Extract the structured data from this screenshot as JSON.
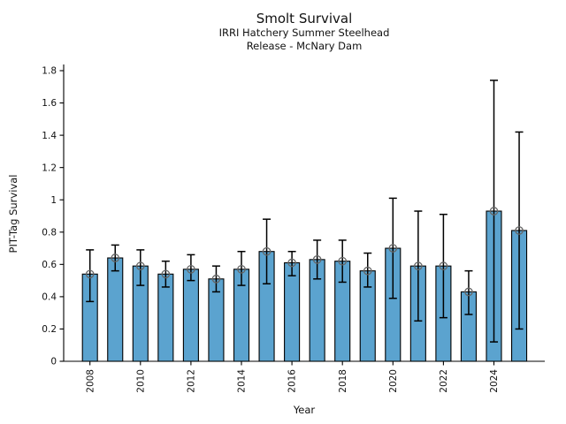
{
  "chart_data": {
    "type": "bar",
    "title": "Smolt Survival",
    "subtitle1": "IRRI Hatchery Summer Steelhead",
    "subtitle2": "Release - McNary Dam",
    "xlabel": "Year",
    "ylabel": "PIT-Tag Survival",
    "categories": [
      2008,
      2009,
      2010,
      2011,
      2012,
      2013,
      2014,
      2015,
      2016,
      2017,
      2018,
      2019,
      2020,
      2021,
      2022,
      2023,
      2024,
      2025
    ],
    "values": [
      0.54,
      0.64,
      0.59,
      0.54,
      0.57,
      0.51,
      0.57,
      0.68,
      0.61,
      0.63,
      0.62,
      0.56,
      0.7,
      0.59,
      0.59,
      0.43,
      0.93,
      0.81
    ],
    "error_low": [
      0.37,
      0.56,
      0.47,
      0.46,
      0.5,
      0.43,
      0.47,
      0.48,
      0.53,
      0.51,
      0.49,
      0.46,
      0.39,
      0.25,
      0.27,
      0.29,
      0.12,
      0.2
    ],
    "error_high": [
      0.69,
      0.72,
      0.69,
      0.62,
      0.66,
      0.59,
      0.68,
      0.88,
      0.68,
      0.75,
      0.75,
      0.67,
      1.01,
      0.93,
      0.91,
      0.56,
      1.74,
      1.42
    ],
    "ylim": [
      0,
      1.85
    ],
    "yticks": [
      0,
      0.2,
      0.4,
      0.6,
      0.8,
      1,
      1.2,
      1.4,
      1.6,
      1.8
    ],
    "ytick_labels": [
      "0",
      "0.2",
      "0.4",
      "0.6",
      "0.8",
      "1",
      "1.2",
      "1.4",
      "1.6",
      "1.8"
    ],
    "xtick_years": [
      2008,
      2010,
      2012,
      2014,
      2016,
      2018,
      2020,
      2022,
      2024
    ],
    "grid": false,
    "legend": "none",
    "bar_color": "#5BA3CF",
    "bar_edge_color": "#000000",
    "errorbar_color": "#000000",
    "marker": "open-circle",
    "marker_color": "#666666",
    "axis_color": "#000000"
  }
}
